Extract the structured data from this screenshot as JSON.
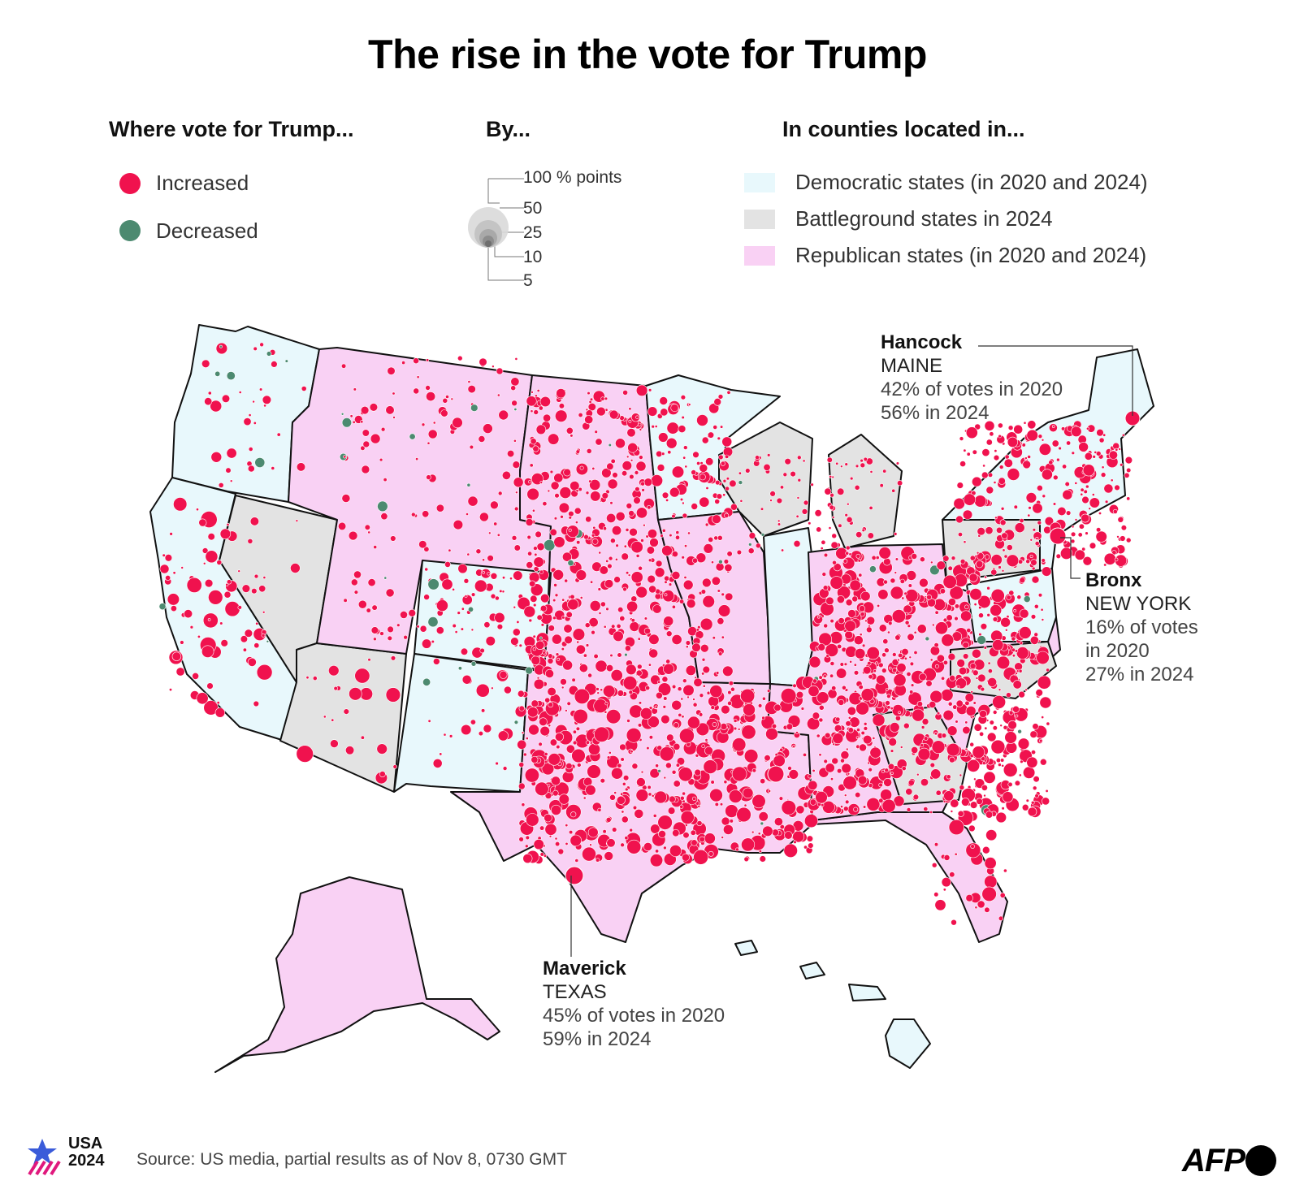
{
  "title": "The rise in the vote for Trump",
  "legend": {
    "direction": {
      "heading": "Where vote for Trump...",
      "items": [
        {
          "label": "Increased",
          "color": "#f0124e"
        },
        {
          "label": "Decreased",
          "color": "#4c8a70"
        }
      ]
    },
    "size": {
      "heading": "By...",
      "labels": [
        "100 % points",
        "50",
        "25",
        "10",
        "5"
      ]
    },
    "states": {
      "heading": "In counties located in...",
      "items": [
        {
          "label": "Democratic states (in 2020 and 2024)",
          "color": "#e8f8fc"
        },
        {
          "label": "Battleground states in 2024",
          "color": "#e3e3e3"
        },
        {
          "label": "Republican states (in 2020 and 2024)",
          "color": "#f9d1f4"
        }
      ]
    }
  },
  "annotations": {
    "hancock": {
      "name": "Hancock",
      "state": "MAINE",
      "line1": "42% of votes in 2020",
      "line2": "56% in 2024"
    },
    "bronx": {
      "name": "Bronx",
      "state": "NEW YORK",
      "line1": "16% of votes",
      "line2": "in 2020",
      "line3": "27% in 2024"
    },
    "maverick": {
      "name": "Maverick",
      "state": "TEXAS",
      "line1": "45% of votes in 2020",
      "line2": "59% in 2024"
    }
  },
  "footer": {
    "source": "Source: US media, partial results as of Nov 8, 0730 GMT",
    "logo_line1": "USA",
    "logo_line2": "2024",
    "agency": "AFP"
  },
  "colors": {
    "increase": "#f0124e",
    "decrease": "#4c8a70",
    "democratic": "#e8f8fc",
    "battleground": "#e3e3e3",
    "republican": "#f9d1f4",
    "border": "#111111"
  }
}
